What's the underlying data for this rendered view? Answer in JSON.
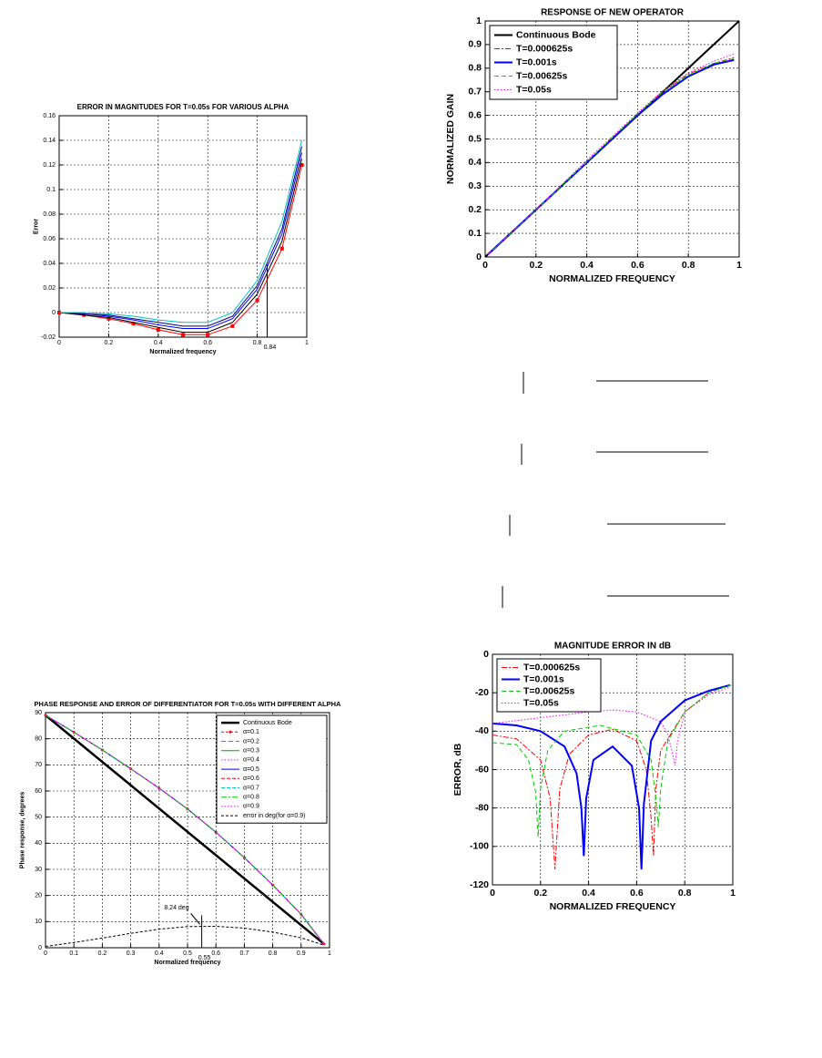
{
  "chart_data": [
    {
      "type": "line",
      "title": "ERROR IN MAGNITUDES FOR T=0.05s FOR VARIOUS ALPHA",
      "x_label": "Normalized frequency",
      "y_label": "Error",
      "xlim": [
        0,
        1
      ],
      "ylim": [
        -0.02,
        0.16
      ],
      "xticks": [
        0,
        0.2,
        0.4,
        0.6,
        0.8,
        1
      ],
      "yticks": [
        -0.02,
        0,
        0.02,
        0.04,
        0.06,
        0.08,
        0.1,
        0.12,
        0.14,
        0.16
      ],
      "grid": true,
      "x": [
        0,
        0.1,
        0.2,
        0.3,
        0.4,
        0.5,
        0.6,
        0.7,
        0.8,
        0.9,
        0.98
      ],
      "series": [
        {
          "color": "#ff0000",
          "marker": "square",
          "values": [
            0,
            -0.002,
            -0.005,
            -0.009,
            -0.014,
            -0.018,
            -0.018,
            -0.011,
            0.01,
            0.052,
            0.12
          ]
        },
        {
          "color": "#000000",
          "values": [
            0,
            -0.002,
            -0.004,
            -0.008,
            -0.012,
            -0.016,
            -0.016,
            -0.008,
            0.015,
            0.058,
            0.125
          ]
        },
        {
          "color": "#0000ff",
          "values": [
            0,
            -0.001,
            -0.003,
            -0.006,
            -0.01,
            -0.013,
            -0.013,
            -0.005,
            0.019,
            0.064,
            0.13
          ]
        },
        {
          "color": "#000080",
          "values": [
            0,
            -0.001,
            -0.002,
            -0.005,
            -0.008,
            -0.011,
            -0.011,
            -0.003,
            0.022,
            0.068,
            0.135
          ]
        },
        {
          "color": "#00c0c0",
          "values": [
            0,
            0,
            -0.001,
            -0.003,
            -0.006,
            -0.008,
            -0.008,
            0,
            0.026,
            0.074,
            0.14
          ]
        }
      ],
      "annotations": [
        {
          "text": "0.84",
          "x": 0.84,
          "y": 0.03,
          "style": "drop"
        }
      ]
    },
    {
      "type": "line",
      "title": "RESPONSE OF NEW OPERATOR",
      "x_label": "NORMALIZED FREQUENCY",
      "y_label": "NORMALIZED GAIN",
      "xlim": [
        0,
        1
      ],
      "ylim": [
        0,
        1
      ],
      "xticks": [
        0,
        0.2,
        0.4,
        0.6,
        0.8,
        1
      ],
      "yticks": [
        0,
        0.1,
        0.2,
        0.3,
        0.4,
        0.5,
        0.6,
        0.7,
        0.8,
        0.9,
        1
      ],
      "grid": true,
      "legend": "upper left",
      "x": [
        0.01,
        0.1,
        0.2,
        0.3,
        0.4,
        0.5,
        0.6,
        0.7,
        0.8,
        0.9,
        0.98
      ],
      "series": [
        {
          "name": "Continuous Bode",
          "color": "#000000",
          "width": 2,
          "x": [
            0,
            1
          ],
          "values": [
            0,
            1
          ]
        },
        {
          "name": "T=0.000625s",
          "color": "#ff0000",
          "dash": "6,2,2,2",
          "values": [
            0.01,
            0.1,
            0.2,
            0.3,
            0.402,
            0.505,
            0.605,
            0.7,
            0.775,
            0.82,
            0.845
          ]
        },
        {
          "name": "T=0.001s",
          "color": "#0000ff",
          "width": 2,
          "values": [
            0.01,
            0.1,
            0.2,
            0.3,
            0.4,
            0.5,
            0.6,
            0.69,
            0.765,
            0.815,
            0.835
          ]
        },
        {
          "name": "T=0.00625s",
          "color": "#00cc00",
          "dash": "5,3",
          "values": [
            0.01,
            0.1,
            0.2,
            0.3,
            0.403,
            0.505,
            0.605,
            0.7,
            0.77,
            0.82,
            0.84
          ]
        },
        {
          "name": "T=0.05s",
          "color": "#ff00ff",
          "dash": "1.5,2",
          "values": [
            0.01,
            0.1,
            0.2,
            0.305,
            0.41,
            0.51,
            0.61,
            0.705,
            0.78,
            0.83,
            0.86
          ]
        }
      ]
    },
    {
      "type": "line",
      "title": "PHASE RESPONSE AND ERROR OF DIFFERENTIATOR FOR T=0.05s WITH DIFFERENT ALPHA",
      "x_label": "Normalized frequency",
      "y_label": "Phase response, degrees",
      "xlim": [
        0,
        1
      ],
      "ylim": [
        0,
        90
      ],
      "xticks": [
        0,
        0.1,
        0.2,
        0.3,
        0.4,
        0.5,
        0.6,
        0.7,
        0.8,
        0.9,
        1
      ],
      "yticks": [
        0,
        10,
        20,
        30,
        40,
        50,
        60,
        70,
        80,
        90
      ],
      "grid": true,
      "legend": "upper right",
      "x": [
        0,
        0.1,
        0.2,
        0.3,
        0.4,
        0.5,
        0.6,
        0.7,
        0.8,
        0.9,
        0.98
      ],
      "series": [
        {
          "name": "Continuous Bode",
          "color": "#000000",
          "width": 2.5,
          "x": [
            0,
            0.98
          ],
          "values": [
            89,
            1.5
          ]
        },
        {
          "name": "α=0.1",
          "color": "#ff0000",
          "marker": "dot",
          "dash": "3,2",
          "values": [
            89,
            82.5,
            75.7,
            68.5,
            61.1,
            53.1,
            44.2,
            34.5,
            24,
            12.8,
            1.5
          ]
        },
        {
          "name": "α=0.2",
          "color": "#00cc00",
          "dash": "5,3",
          "values": [
            89,
            82.5,
            75.7,
            68.5,
            61.1,
            53.1,
            44.2,
            34.5,
            24,
            12.8,
            1.5
          ]
        },
        {
          "name": "α=0.3",
          "color": "#00aa00",
          "values": [
            89,
            82.5,
            75.7,
            68.5,
            61.1,
            53.1,
            44.2,
            34.5,
            24,
            12.8,
            1.5
          ]
        },
        {
          "name": "α=0.4",
          "color": "#ff00ff",
          "dash": "1.5,2",
          "values": [
            89,
            82.5,
            75.7,
            68.5,
            61.1,
            53.1,
            44.2,
            34.5,
            24,
            12.8,
            1.5
          ]
        },
        {
          "name": "α=0.5",
          "color": "#0000ff",
          "values": [
            89,
            82.5,
            75.7,
            68.5,
            61.1,
            53.1,
            44.2,
            34.5,
            24,
            12.8,
            1.5
          ]
        },
        {
          "name": "α=0.6",
          "color": "#ff0000",
          "dash": "4,2",
          "values": [
            89,
            82.5,
            75.7,
            68.5,
            61.1,
            53.1,
            44.2,
            34.5,
            24,
            12.8,
            1.5
          ]
        },
        {
          "name": "α=0.7",
          "color": "#00cccc",
          "dash": "4,2",
          "values": [
            89,
            82.5,
            75.7,
            68.5,
            61.1,
            53.1,
            44.2,
            34.5,
            24,
            12.8,
            1.5
          ]
        },
        {
          "name": "α=0.8",
          "color": "#00cc00",
          "dash": "6,2,2,2",
          "values": [
            89,
            82.5,
            75.7,
            68.5,
            61.1,
            53.1,
            44.2,
            34.5,
            24,
            12.8,
            1.5
          ]
        },
        {
          "name": "α=0.9",
          "color": "#ff00ff",
          "dash": "1.5,2",
          "values": [
            89,
            82.5,
            75.7,
            68.5,
            61.1,
            53.1,
            44.2,
            34.5,
            24,
            12.8,
            1.5
          ]
        },
        {
          "name": "error in deg(for α=0.9)",
          "color": "#000000",
          "dash": "3,2",
          "values": [
            0.5,
            2,
            3.7,
            5.5,
            7.1,
            8.1,
            8.2,
            7.5,
            6,
            3.8,
            1
          ]
        }
      ],
      "annotations": [
        {
          "text": "8.24 deg",
          "x": 0.55,
          "y": 8.24,
          "style": "arrow"
        },
        {
          "text": "0.55",
          "x": 0.55,
          "y": 8.24,
          "style": "drop"
        }
      ]
    },
    {
      "type": "line",
      "title": "MAGNITUDE ERROR IN dB",
      "x_label": "NORMALIZED FREQUENCY",
      "y_label": "ERROR, dB",
      "xlim": [
        0,
        1
      ],
      "ylim": [
        -120,
        0
      ],
      "xticks": [
        0,
        0.2,
        0.4,
        0.6,
        0.8,
        1
      ],
      "yticks": [
        -120,
        -100,
        -80,
        -60,
        -40,
        -20,
        0
      ],
      "grid": true,
      "legend": "upper left",
      "series": [
        {
          "name": "T=0.000625s",
          "color": "#ff0000",
          "dash": "6,2,2,2",
          "x": [
            0,
            0.1,
            0.2,
            0.24,
            0.26,
            0.28,
            0.32,
            0.4,
            0.5,
            0.6,
            0.64,
            0.66,
            0.67,
            0.68,
            0.7,
            0.8,
            0.9,
            0.99
          ],
          "values": [
            -42,
            -44,
            -55,
            -75,
            -112,
            -70,
            -52,
            -42,
            -39,
            -45,
            -60,
            -85,
            -105,
            -70,
            -50,
            -30,
            -20,
            -16
          ]
        },
        {
          "name": "T=0.001s",
          "color": "#0000ff",
          "width": 2,
          "x": [
            0,
            0.1,
            0.2,
            0.3,
            0.35,
            0.37,
            0.38,
            0.39,
            0.42,
            0.5,
            0.58,
            0.61,
            0.62,
            0.63,
            0.66,
            0.7,
            0.8,
            0.9,
            0.99
          ],
          "values": [
            -36,
            -37,
            -40,
            -48,
            -62,
            -80,
            -105,
            -75,
            -55,
            -48,
            -58,
            -80,
            -112,
            -78,
            -45,
            -35,
            -24,
            -19,
            -16
          ]
        },
        {
          "name": "T=0.00625s",
          "color": "#00cc00",
          "dash": "5,3",
          "x": [
            0,
            0.1,
            0.15,
            0.18,
            0.19,
            0.2,
            0.23,
            0.3,
            0.45,
            0.6,
            0.66,
            0.68,
            0.69,
            0.7,
            0.73,
            0.8,
            0.9,
            0.99
          ],
          "values": [
            -46,
            -47,
            -55,
            -72,
            -95,
            -70,
            -50,
            -40,
            -37,
            -42,
            -55,
            -75,
            -90,
            -70,
            -45,
            -30,
            -20,
            -16
          ]
        },
        {
          "name": "T=0.05s",
          "color": "#ff00ff",
          "dash": "1.5,2",
          "x": [
            0,
            0.2,
            0.4,
            0.5,
            0.6,
            0.7,
            0.73,
            0.75,
            0.76,
            0.77,
            0.8,
            0.9,
            0.99
          ],
          "values": [
            -36,
            -33,
            -30,
            -29,
            -30,
            -35,
            -42,
            -52,
            -58,
            -45,
            -30,
            -21,
            -17
          ]
        }
      ]
    }
  ]
}
